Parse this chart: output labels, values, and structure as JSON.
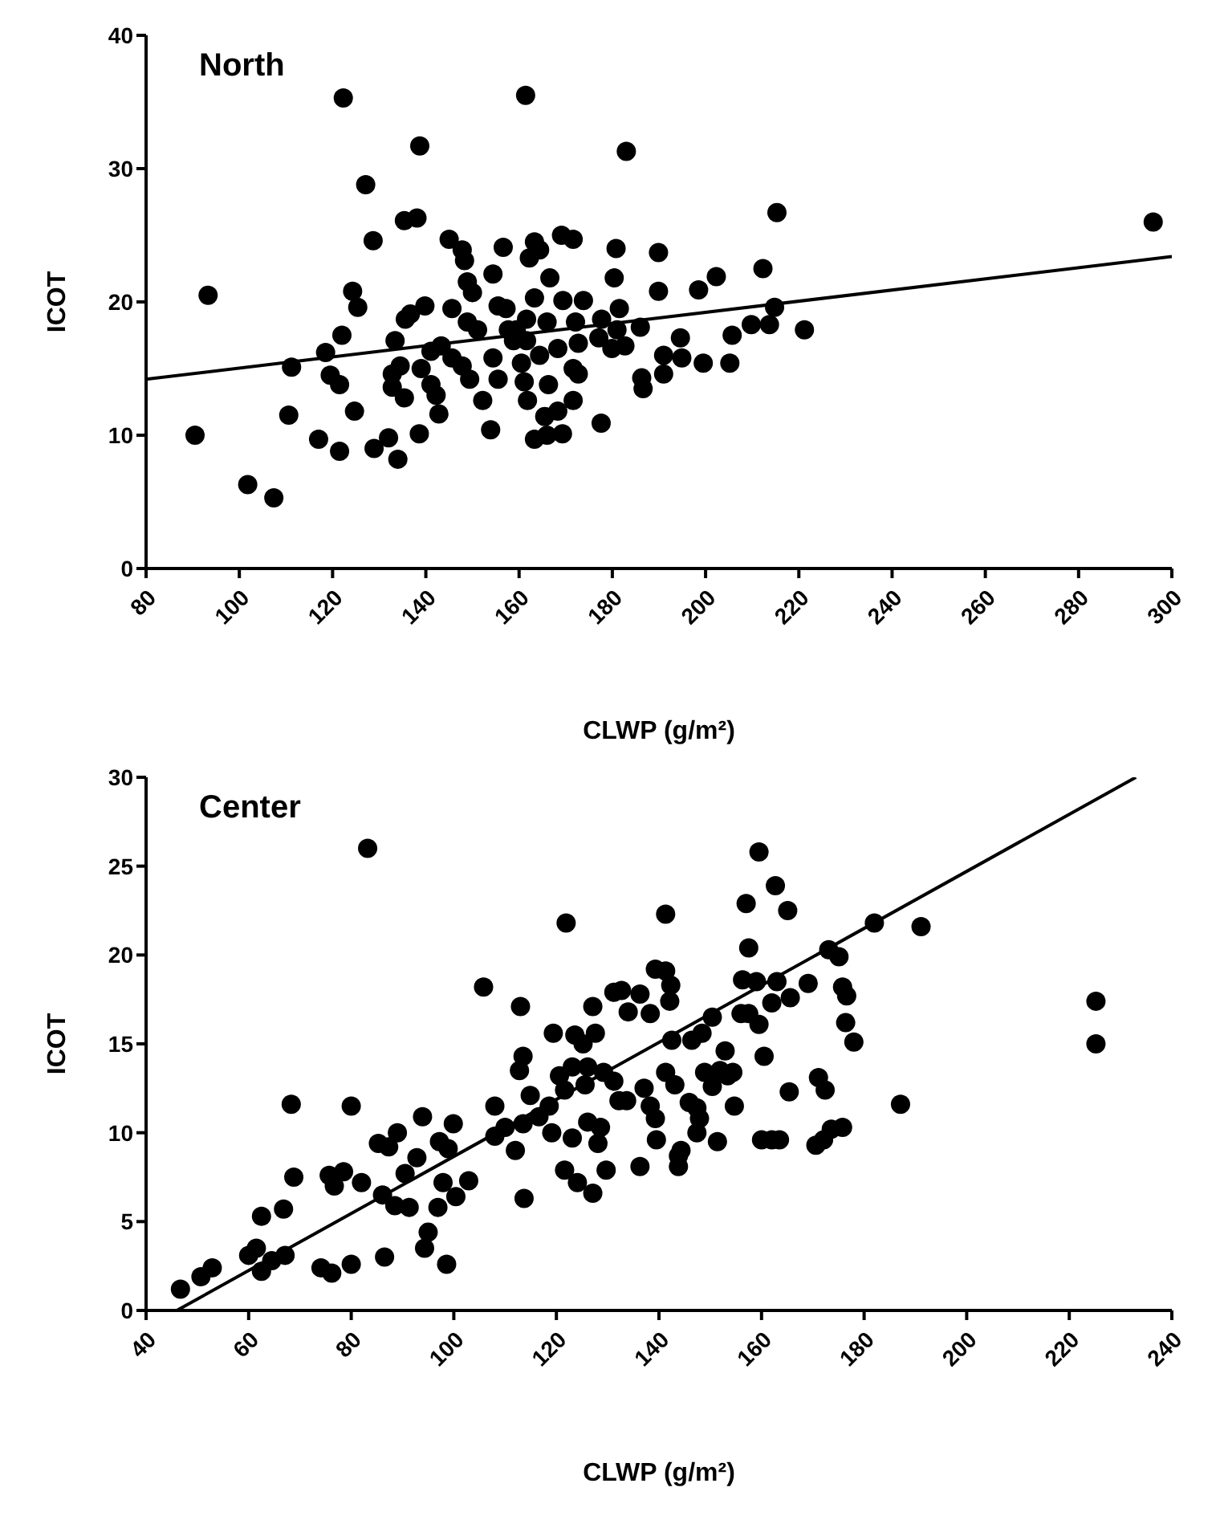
{
  "chart_data": [
    {
      "type": "scatter",
      "title": "North",
      "xlabel": "CLWP (g/m²)",
      "ylabel": "ICOT",
      "xlim": [
        80,
        300
      ],
      "ylim": [
        0,
        40
      ],
      "xticks": [
        80,
        100,
        120,
        140,
        160,
        180,
        200,
        220,
        240,
        260,
        280,
        300
      ],
      "yticks": [
        0,
        10,
        20,
        30,
        40
      ],
      "marker": "circle",
      "series": [
        {
          "type": "scatter",
          "color": "#000000",
          "x": [
            122.3,
            138.7,
            127.1,
            135.4,
            138.1,
            128.7,
            93.3,
            124.3,
            125.4,
            122.0,
            118.5,
            111.2,
            119.5,
            121.5,
            110.6,
            90.5,
            117.0,
            121.5,
            124.7,
            128.9,
            132.0,
            134.0,
            138.6,
            101.8,
            107.4,
            133.4,
            135.6,
            136.7,
            139.8,
            132.8,
            134.5,
            132.8,
            135.4,
            139.0,
            141.1,
            143.3,
            145.0,
            147.8,
            148.3,
            145.6,
            148.9,
            150.0,
            145.6,
            147.8,
            149.4,
            142.2,
            142.8,
            141.1,
            152.2,
            153.9,
            154.4,
            156.6,
            155.5,
            157.2,
            154.4,
            155.5,
            151.1,
            148.9,
            158.8,
            157.7,
            161.4,
            183.0,
            215.3,
            296.0,
            163.3,
            164.4,
            162.2,
            169.1,
            171.6,
            180.8,
            189.9,
            166.6,
            180.4,
            189.9,
            198.5,
            202.3,
            212.3,
            214.8,
            213.7,
            209.8,
            221.2,
            205.7,
            194.6,
            163.3,
            169.4,
            173.8,
            161.6,
            166.0,
            172.1,
            177.7,
            181.5,
            181.0,
            182.7,
            186.0,
            159.4,
            161.6,
            164.4,
            168.3,
            172.7,
            177.1,
            179.9,
            160.5,
            171.6,
            172.7,
            191.0,
            194.9,
            199.5,
            205.2,
            186.3,
            186.6,
            191.0,
            161.1,
            166.3,
            161.8,
            165.5,
            168.3,
            171.6,
            163.3,
            166.0,
            169.3,
            177.6
          ],
          "values": [
            35.3,
            31.7,
            28.8,
            26.1,
            26.3,
            24.6,
            20.5,
            20.8,
            19.6,
            17.5,
            16.2,
            15.1,
            14.5,
            13.8,
            11.5,
            10.0,
            9.7,
            8.8,
            11.8,
            9.0,
            9.8,
            8.2,
            10.1,
            6.3,
            5.3,
            17.1,
            18.7,
            19.1,
            19.7,
            14.6,
            15.2,
            13.6,
            12.8,
            15.0,
            16.3,
            16.7,
            24.7,
            23.9,
            23.1,
            19.5,
            21.5,
            20.7,
            15.8,
            15.2,
            14.2,
            13.0,
            11.6,
            13.8,
            12.6,
            10.4,
            22.1,
            24.1,
            19.7,
            19.5,
            15.8,
            14.2,
            17.9,
            18.5,
            17.1,
            17.9,
            35.5,
            31.3,
            26.7,
            26.0,
            24.5,
            23.9,
            23.3,
            25.0,
            24.7,
            24.0,
            23.7,
            21.8,
            21.8,
            20.8,
            20.9,
            21.9,
            22.5,
            19.6,
            18.3,
            18.3,
            17.9,
            17.5,
            17.3,
            20.3,
            20.1,
            20.1,
            18.7,
            18.5,
            18.5,
            18.7,
            19.5,
            17.9,
            16.7,
            18.1,
            17.9,
            17.1,
            16.0,
            16.5,
            16.9,
            17.3,
            16.5,
            15.4,
            15.0,
            14.6,
            16.0,
            15.8,
            15.4,
            15.4,
            14.3,
            13.5,
            14.6,
            14.0,
            13.8,
            12.6,
            11.4,
            11.8,
            12.6,
            9.7,
            10.0,
            10.1,
            10.9
          ]
        },
        {
          "type": "line",
          "color": "#000000",
          "marker": "none",
          "line_style": "solid",
          "x": [
            80,
            300
          ],
          "values": [
            14.2,
            23.4
          ]
        }
      ]
    },
    {
      "type": "scatter",
      "title": "Center",
      "xlabel": "CLWP (g/m²)",
      "ylabel": "ICOT",
      "xlim": [
        40,
        240
      ],
      "ylim": [
        0,
        30
      ],
      "xticks": [
        40,
        60,
        80,
        100,
        120,
        140,
        160,
        180,
        200,
        220,
        240
      ],
      "yticks": [
        0,
        5,
        10,
        15,
        20,
        25,
        30
      ],
      "marker": "circle",
      "series": [
        {
          "type": "scatter",
          "color": "#000000",
          "x": [
            46.7,
            50.7,
            52.9,
            60.0,
            61.5,
            62.5,
            64.5,
            67.1,
            62.5,
            66.8,
            68.3,
            68.8,
            74.1,
            76.2,
            80.0,
            86.5,
            75.7,
            76.7,
            78.5,
            82.0,
            80.0,
            85.3,
            87.3,
            89.0,
            90.5,
            86.1,
            88.5,
            91.3,
            92.8,
            93.9,
            94.3,
            95.0,
            96.9,
            97.9,
            98.6,
            97.2,
            98.9,
            99.9,
            83.2,
            100.4,
            102.9,
            105.8,
            108.0,
            110.0,
            108.0,
            112.0,
            113.5,
            113.7,
            113.0,
            113.5,
            112.8,
            114.9,
            116.6,
            118.6,
            119.1,
            119.4,
            121.9,
            121.6,
            123.6,
            125.2,
            120.6,
            121.6,
            123.1,
            123.1,
            124.1,
            125.6,
            126.1,
            127.1,
            127.6,
            127.1,
            126.1,
            128.6,
            128.1,
            129.7,
            129.2,
            131.2,
            132.2,
            133.7,
            131.2,
            132.7,
            134.0,
            136.3,
            138.3,
            136.3,
            137.1,
            138.3,
            139.3,
            139.5,
            139.3,
            141.3,
            142.3,
            142.1,
            141.3,
            142.5,
            141.3,
            143.1,
            143.8,
            143.8,
            144.3,
            145.9,
            147.4,
            147.9,
            147.4,
            146.4,
            148.4,
            150.4,
            151.4,
            148.9,
            150.4,
            151.9,
            153.4,
            154.4,
            152.9,
            154.7,
            156.0,
            157.5,
            159.5,
            156.3,
            159.0,
            163.0,
            165.6,
            162.0,
            157.0,
            157.5,
            159.5,
            162.7,
            165.1,
            160.5,
            160.0,
            162.0,
            163.5,
            165.4,
            169.1,
            173.1,
            175.1,
            171.1,
            172.4,
            170.6,
            172.1,
            173.6,
            175.8,
            175.8,
            176.6,
            176.4,
            178.0,
            182.0,
            187.1,
            191.1,
            225.2,
            225.2
          ],
          "values": [
            1.2,
            1.9,
            2.4,
            3.1,
            3.5,
            2.2,
            2.8,
            3.1,
            5.3,
            5.7,
            11.6,
            7.5,
            2.4,
            2.1,
            2.6,
            3.0,
            7.6,
            7.0,
            7.8,
            7.2,
            11.5,
            9.4,
            9.2,
            10.0,
            7.7,
            6.5,
            5.9,
            5.8,
            8.6,
            10.9,
            3.5,
            4.4,
            5.8,
            7.2,
            2.6,
            9.5,
            9.1,
            10.5,
            26.0,
            6.4,
            7.3,
            18.2,
            11.5,
            10.3,
            9.8,
            9.0,
            10.5,
            6.3,
            17.1,
            14.3,
            13.5,
            12.1,
            10.9,
            11.5,
            10.0,
            15.6,
            21.8,
            7.9,
            15.5,
            15.0,
            13.2,
            12.4,
            13.7,
            9.7,
            7.2,
            12.7,
            13.7,
            6.6,
            15.6,
            17.1,
            10.6,
            10.3,
            9.4,
            7.9,
            13.4,
            12.9,
            11.8,
            11.8,
            17.9,
            18.0,
            16.8,
            17.8,
            16.7,
            8.1,
            12.5,
            11.5,
            10.8,
            9.6,
            19.2,
            19.1,
            18.3,
            17.4,
            22.3,
            15.2,
            13.4,
            12.7,
            8.7,
            8.1,
            9.0,
            11.7,
            11.4,
            10.8,
            10.0,
            15.2,
            15.6,
            16.5,
            9.5,
            13.4,
            12.6,
            13.5,
            13.2,
            13.4,
            14.6,
            11.5,
            16.7,
            16.7,
            16.1,
            18.6,
            18.5,
            18.5,
            17.6,
            17.3,
            22.9,
            20.4,
            25.8,
            23.9,
            22.5,
            14.3,
            9.6,
            9.6,
            9.6,
            12.3,
            18.4,
            20.3,
            19.9,
            13.1,
            12.4,
            9.3,
            9.6,
            10.2,
            10.3,
            18.2,
            17.7,
            16.2,
            15.1,
            21.8,
            11.6,
            21.6,
            17.4,
            15.0
          ]
        },
        {
          "type": "line",
          "color": "#000000",
          "marker": "none",
          "line_style": "solid",
          "x": [
            46,
            233
          ],
          "values": [
            0,
            30
          ]
        }
      ]
    }
  ]
}
